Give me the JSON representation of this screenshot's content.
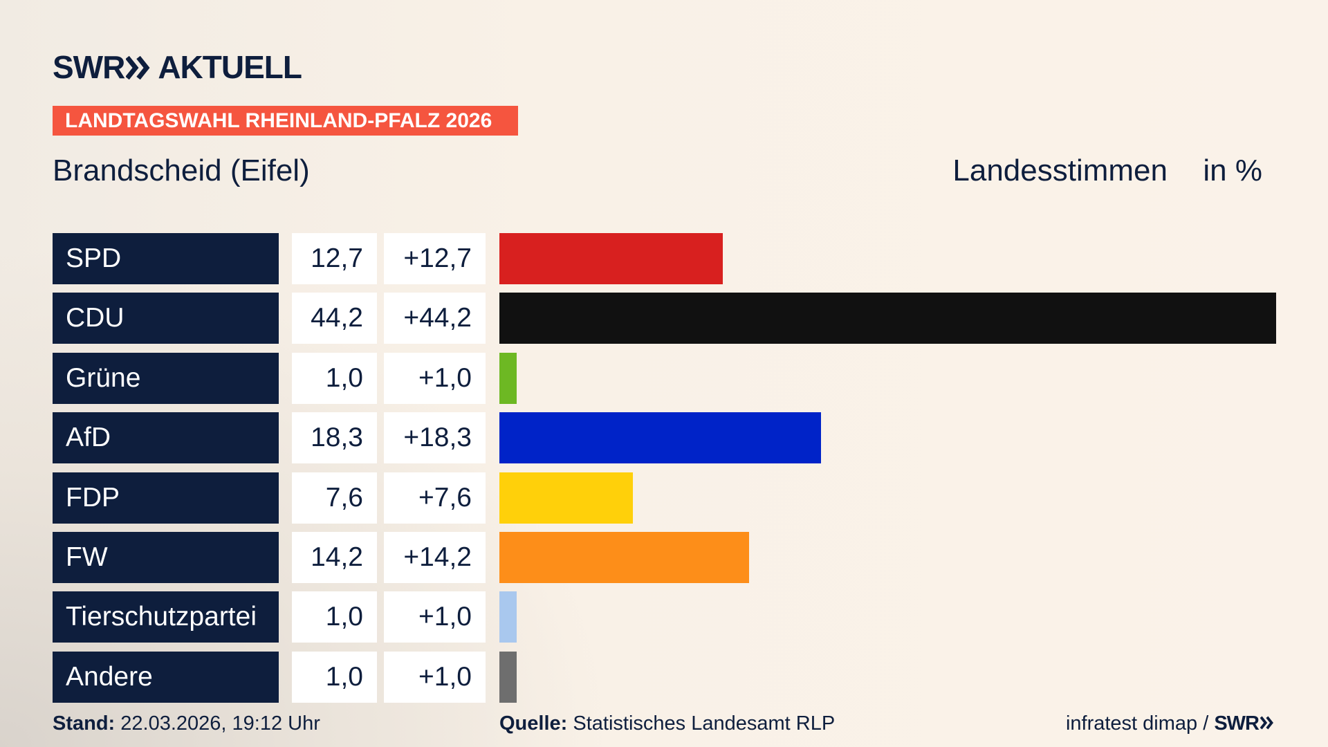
{
  "brand": {
    "name": "SWR",
    "section": "AKTUELL"
  },
  "banner": "LANDTAGSWAHL RHEINLAND-PFALZ 2026",
  "chart_data": {
    "type": "bar",
    "title": "Brandscheid (Eifel)",
    "subtitle": "Landesstimmen",
    "unit": "in %",
    "categories": [
      "SPD",
      "CDU",
      "Grüne",
      "AfD",
      "FDP",
      "FW",
      "Tierschutzpartei",
      "Andere"
    ],
    "values": [
      12.7,
      44.2,
      1.0,
      18.3,
      7.6,
      14.2,
      1.0,
      1.0
    ],
    "value_labels": [
      "12,7",
      "44,2",
      "1,0",
      "18,3",
      "7,6",
      "14,2",
      "1,0",
      "1,0"
    ],
    "changes": [
      12.7,
      44.2,
      1.0,
      18.3,
      7.6,
      14.2,
      1.0,
      1.0
    ],
    "change_labels": [
      "+12,7",
      "+44,2",
      "+1,0",
      "+18,3",
      "+7,6",
      "+14,2",
      "+1,0",
      "+1,0"
    ],
    "colors": [
      "#d8201f",
      "#111111",
      "#6db823",
      "#0023c8",
      "#ffd00a",
      "#fd8e19",
      "#a9c8ee",
      "#6e6e6e"
    ]
  },
  "footer": {
    "stand_label": "Stand:",
    "stand": "22.03.2026, 19:12 Uhr",
    "source_label": "Quelle:",
    "source": "Statistisches Landesamt RLP",
    "credit": "infratest dimap /",
    "credit_logo": "SWR"
  }
}
